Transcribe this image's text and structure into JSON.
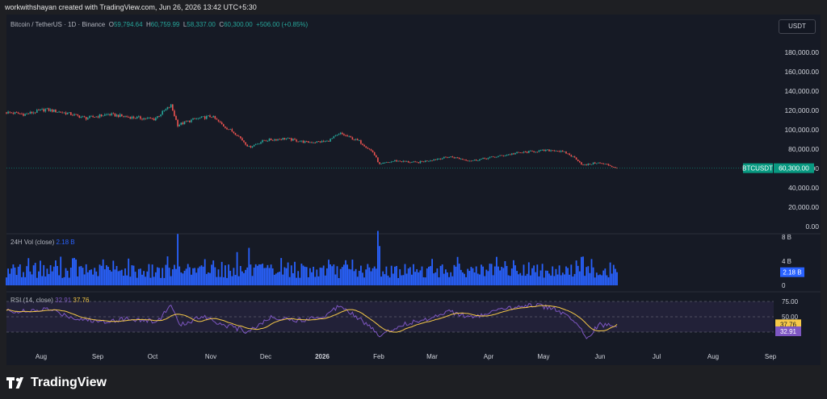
{
  "credit": "workwithshayan created with TradingView.com, Jun 26, 2026 13:42 UTC+5:30",
  "legend": {
    "symbol": "Bitcoin / TetherUS · 1D · Binance",
    "open": "59,794.64",
    "high": "60,759.99",
    "low": "58,337.00",
    "close": "60,300.00",
    "change": "+506.00 (+0.85%)"
  },
  "currency": "USDT",
  "price_axis": [
    "180,000.00",
    "160,000.00",
    "140,000.00",
    "120,000.00",
    "100,000.00",
    "80,000.00",
    "60,000.00",
    "40,000.00",
    "20,000.00",
    "0.00"
  ],
  "price_label": {
    "symbol": "BTCUSDT",
    "value": "60,300.00"
  },
  "volume": {
    "label": "24H Vol (close)",
    "value": "2.18 B",
    "axis": [
      "8 B",
      "4 B",
      "0"
    ],
    "last_label": "2.18 B"
  },
  "rsi": {
    "label": "RSI (14, close)",
    "rsi_value": "32.91",
    "ma_value": "37.76",
    "axis": [
      "75.00",
      "50.00",
      "25.00"
    ]
  },
  "x_labels": [
    "Aug",
    "Sep",
    "Oct",
    "Nov",
    "Dec",
    "2026",
    "Feb",
    "Mar",
    "Apr",
    "May",
    "Jun",
    "Jul",
    "Aug",
    "Sep"
  ],
  "brand": "TradingView",
  "colors": {
    "up": "#26a69a",
    "down": "#ef5350",
    "volume": "#2962ff",
    "rsi": "#7e57c2",
    "rsi_ma": "#f7c948",
    "last_price": "#089981"
  },
  "chart_data": {
    "type": "line",
    "title": "Bitcoin / TetherUS · 1D · Binance",
    "ylim": [
      0,
      190000
    ],
    "anchors": [
      {
        "d": "2025-07-01",
        "p": 118000
      },
      {
        "d": "2025-07-12",
        "p": 116000
      },
      {
        "d": "2025-07-24",
        "p": 121000
      },
      {
        "d": "2025-08-06",
        "p": 117000
      },
      {
        "d": "2025-08-17",
        "p": 112000
      },
      {
        "d": "2025-08-30",
        "p": 116000
      },
      {
        "d": "2025-09-12",
        "p": 113000
      },
      {
        "d": "2025-09-26",
        "p": 111000
      },
      {
        "d": "2025-10-06",
        "p": 125000
      },
      {
        "d": "2025-10-10",
        "p": 105000
      },
      {
        "d": "2025-10-20",
        "p": 111000
      },
      {
        "d": "2025-10-30",
        "p": 114000
      },
      {
        "d": "2025-11-06",
        "p": 104000
      },
      {
        "d": "2025-11-14",
        "p": 95000
      },
      {
        "d": "2025-11-21",
        "p": 82000
      },
      {
        "d": "2025-11-30",
        "p": 89000
      },
      {
        "d": "2025-12-12",
        "p": 91000
      },
      {
        "d": "2025-12-25",
        "p": 87000
      },
      {
        "d": "2026-01-06",
        "p": 88000
      },
      {
        "d": "2026-01-14",
        "p": 96000
      },
      {
        "d": "2026-01-25",
        "p": 88000
      },
      {
        "d": "2026-02-02",
        "p": 77000
      },
      {
        "d": "2026-02-06",
        "p": 64000
      },
      {
        "d": "2026-02-15",
        "p": 68000
      },
      {
        "d": "2026-02-28",
        "p": 66000
      },
      {
        "d": "2026-03-12",
        "p": 70000
      },
      {
        "d": "2026-03-20",
        "p": 72000
      },
      {
        "d": "2026-04-01",
        "p": 68000
      },
      {
        "d": "2026-04-15",
        "p": 72000
      },
      {
        "d": "2026-04-28",
        "p": 76000
      },
      {
        "d": "2026-05-10",
        "p": 78000
      },
      {
        "d": "2026-05-20",
        "p": 79000
      },
      {
        "d": "2026-05-27",
        "p": 76000
      },
      {
        "d": "2026-06-02",
        "p": 70000
      },
      {
        "d": "2026-06-06",
        "p": 63000
      },
      {
        "d": "2026-06-14",
        "p": 66000
      },
      {
        "d": "2026-06-20",
        "p": 64000
      },
      {
        "d": "2026-06-26",
        "p": 60300
      }
    ],
    "volume_spikes": [
      {
        "d": "2025-07-14",
        "v": 4.5
      },
      {
        "d": "2025-10-10",
        "v": 8.5
      },
      {
        "d": "2025-11-14",
        "v": 5.5
      },
      {
        "d": "2025-11-21",
        "v": 6.2
      },
      {
        "d": "2026-02-05",
        "v": 9.0
      },
      {
        "d": "2026-02-06",
        "v": 6.5
      },
      {
        "d": "2026-06-05",
        "v": 4.7
      }
    ],
    "rsi_anchors": [
      {
        "d": "2025-07-01",
        "r": 60
      },
      {
        "d": "2025-07-15",
        "r": 58
      },
      {
        "d": "2025-07-25",
        "r": 63
      },
      {
        "d": "2025-08-10",
        "r": 48
      },
      {
        "d": "2025-08-25",
        "r": 42
      },
      {
        "d": "2025-09-10",
        "r": 47
      },
      {
        "d": "2025-09-28",
        "r": 42
      },
      {
        "d": "2025-10-06",
        "r": 70
      },
      {
        "d": "2025-10-11",
        "r": 35
      },
      {
        "d": "2025-10-25",
        "r": 52
      },
      {
        "d": "2025-11-05",
        "r": 38
      },
      {
        "d": "2025-11-20",
        "r": 26
      },
      {
        "d": "2025-12-05",
        "r": 50
      },
      {
        "d": "2025-12-20",
        "r": 44
      },
      {
        "d": "2026-01-05",
        "r": 52
      },
      {
        "d": "2026-01-14",
        "r": 70
      },
      {
        "d": "2026-01-26",
        "r": 45
      },
      {
        "d": "2026-02-06",
        "r": 20
      },
      {
        "d": "2026-02-20",
        "r": 38
      },
      {
        "d": "2026-03-05",
        "r": 45
      },
      {
        "d": "2026-03-18",
        "r": 60
      },
      {
        "d": "2026-04-01",
        "r": 48
      },
      {
        "d": "2026-04-20",
        "r": 62
      },
      {
        "d": "2026-05-05",
        "r": 70
      },
      {
        "d": "2026-05-20",
        "r": 64
      },
      {
        "d": "2026-06-02",
        "r": 40
      },
      {
        "d": "2026-06-08",
        "r": 16
      },
      {
        "d": "2026-06-16",
        "r": 38
      },
      {
        "d": "2026-06-26",
        "r": 32.91
      }
    ],
    "rsi_range": [
      0,
      100
    ],
    "rsi_bands": [
      70,
      50,
      30
    ]
  }
}
